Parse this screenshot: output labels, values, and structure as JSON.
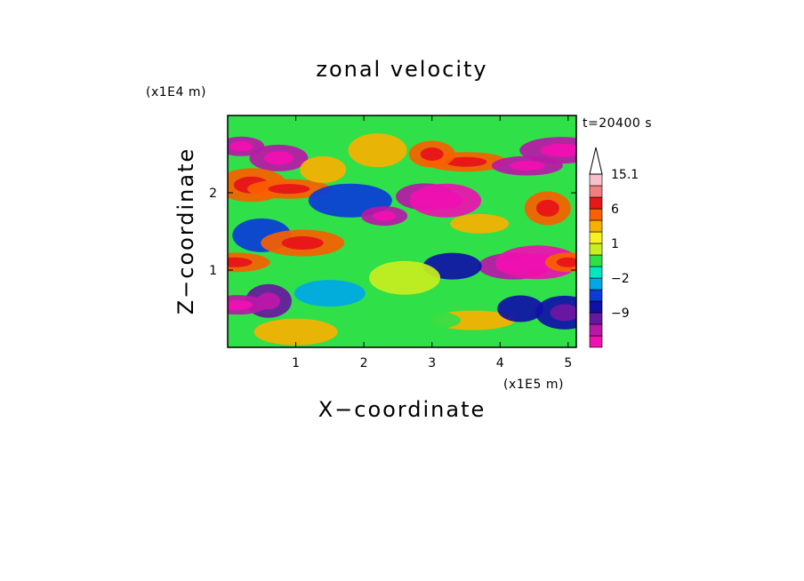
{
  "chart_data": {
    "type": "heatmap",
    "title": "zonal velocity",
    "time_label": "t=20400 s",
    "xlabel": "X−coordinate",
    "ylabel": "Z−coordinate",
    "x_unit": "(x1E5 m)",
    "y_unit": "(x1E4 m)",
    "xlim": [
      0,
      5.12
    ],
    "ylim": [
      0,
      3.0
    ],
    "x_ticks": [
      {
        "value": 1,
        "label": "1"
      },
      {
        "value": 2,
        "label": "2"
      },
      {
        "value": 3,
        "label": "3"
      },
      {
        "value": 4,
        "label": "4"
      },
      {
        "value": 5,
        "label": "5"
      }
    ],
    "y_ticks": [
      {
        "value": 1,
        "label": "1"
      },
      {
        "value": 2,
        "label": "2"
      }
    ],
    "colorbar": {
      "levels": [
        -15,
        -12,
        -9,
        -6,
        -3,
        -2,
        -1,
        0,
        1,
        2,
        3,
        6,
        9,
        12,
        15.1
      ],
      "colors": [
        "#ee10b0",
        "#b818a8",
        "#6818a0",
        "#1010a8",
        "#0a3cd8",
        "#00a8e8",
        "#00e8c0",
        "#30e048",
        "#c8ee20",
        "#f8f020",
        "#f8b000",
        "#f86000",
        "#e81818",
        "#f08080",
        "#f8c0c8"
      ],
      "tick_labels": [
        {
          "value": 15.1,
          "label": "15.1"
        },
        {
          "value": 6,
          "label": "6"
        },
        {
          "value": 1,
          "label": "1"
        },
        {
          "value": -2,
          "label": "−2"
        },
        {
          "value": -9,
          "label": "−9"
        }
      ],
      "extend_max_arrow": true
    },
    "field_description_blobs": [
      {
        "x": 0.2,
        "z": 2.6,
        "u": -12
      },
      {
        "x": 0.75,
        "z": 2.45,
        "u": -10
      },
      {
        "x": 0.35,
        "z": 2.1,
        "u": 7
      },
      {
        "x": 0.9,
        "z": 2.05,
        "u": 7
      },
      {
        "x": 1.4,
        "z": 2.3,
        "u": 5
      },
      {
        "x": 0.5,
        "z": 1.45,
        "u": -3
      },
      {
        "x": 0.1,
        "z": 1.1,
        "u": 8
      },
      {
        "x": 1.1,
        "z": 1.35,
        "u": 6
      },
      {
        "x": 0.6,
        "z": 0.6,
        "u": -7
      },
      {
        "x": 0.15,
        "z": 0.55,
        "u": -10
      },
      {
        "x": 1.5,
        "z": 0.7,
        "u": -2
      },
      {
        "x": 1.8,
        "z": 1.9,
        "u": -3
      },
      {
        "x": 2.3,
        "z": 1.7,
        "u": -10
      },
      {
        "x": 2.9,
        "z": 1.95,
        "u": -12
      },
      {
        "x": 3.2,
        "z": 1.9,
        "u": -13
      },
      {
        "x": 3.5,
        "z": 2.4,
        "u": 7
      },
      {
        "x": 3.0,
        "z": 2.5,
        "u": 6
      },
      {
        "x": 2.2,
        "z": 2.55,
        "u": 3
      },
      {
        "x": 4.4,
        "z": 2.35,
        "u": -12
      },
      {
        "x": 4.9,
        "z": 2.55,
        "u": -11
      },
      {
        "x": 4.7,
        "z": 1.8,
        "u": 6
      },
      {
        "x": 3.7,
        "z": 1.6,
        "u": 4
      },
      {
        "x": 4.2,
        "z": 1.05,
        "u": -12
      },
      {
        "x": 4.55,
        "z": 1.1,
        "u": -13
      },
      {
        "x": 5.0,
        "z": 1.1,
        "u": 7
      },
      {
        "x": 3.3,
        "z": 1.05,
        "u": -4
      },
      {
        "x": 2.6,
        "z": 0.9,
        "u": 1
      },
      {
        "x": 3.6,
        "z": 0.35,
        "u": 3
      },
      {
        "x": 4.3,
        "z": 0.5,
        "u": -4
      },
      {
        "x": 4.95,
        "z": 0.45,
        "u": -6
      },
      {
        "x": 2.9,
        "z": 0.35,
        "u": 0
      },
      {
        "x": 1.0,
        "z": 0.2,
        "u": 3
      }
    ]
  }
}
